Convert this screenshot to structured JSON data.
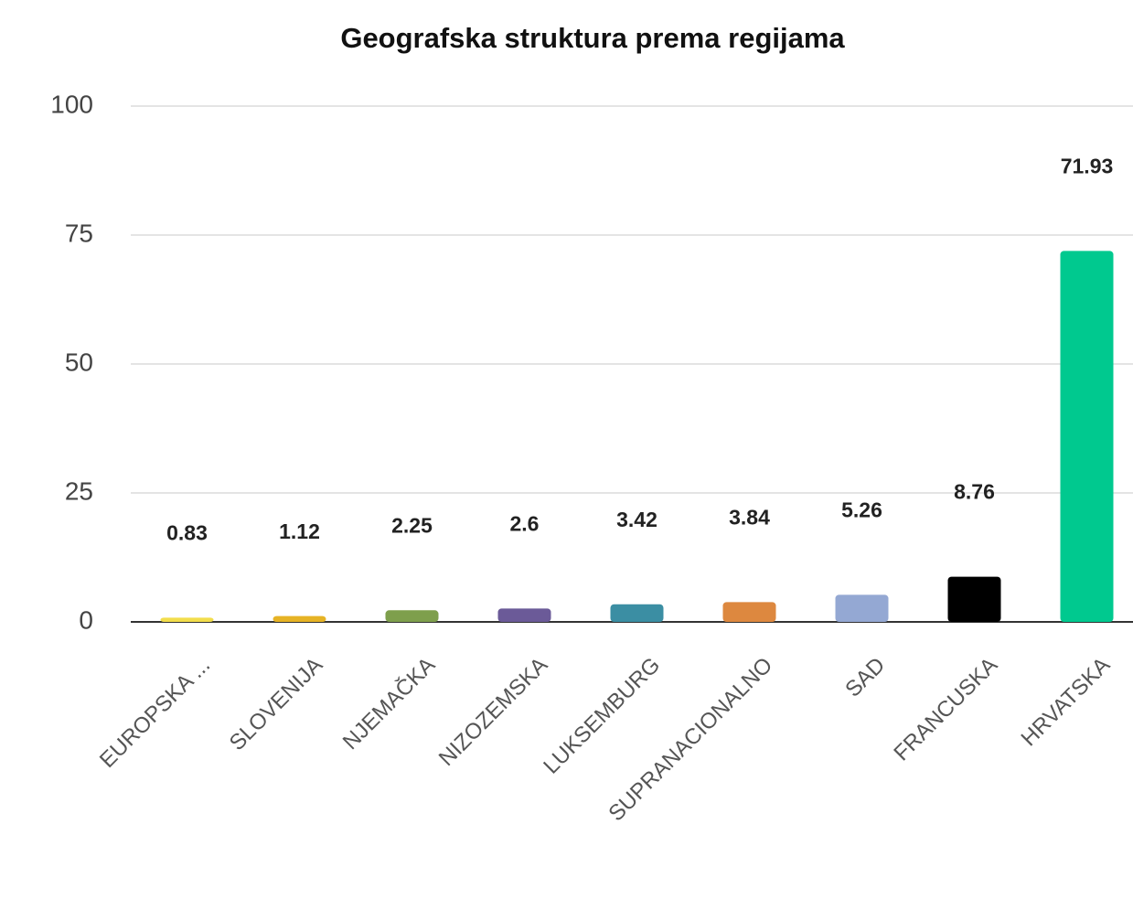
{
  "chart_data": {
    "type": "bar",
    "title": "Geografska struktura prema regijama",
    "categories": [
      "EUROPSKA ...",
      "SLOVENIJA",
      "NJEMAČKA",
      "NIZOZEMSKA",
      "LUKSEMBURG",
      "SUPRANACIONALNO",
      "SAD",
      "FRANCUSKA",
      "HRVATSKA"
    ],
    "values": [
      0.83,
      1.12,
      2.25,
      2.6,
      3.42,
      3.84,
      5.26,
      8.76,
      71.93
    ],
    "colors": [
      "#f2dd4c",
      "#e6b325",
      "#7e9f4c",
      "#6b5a98",
      "#3b8ea3",
      "#dd883f",
      "#94a8d3",
      "#000000",
      "#00c98f"
    ],
    "ylim": [
      0,
      100
    ],
    "yticks": [
      0,
      25,
      50,
      75,
      100
    ],
    "grid": true
  }
}
